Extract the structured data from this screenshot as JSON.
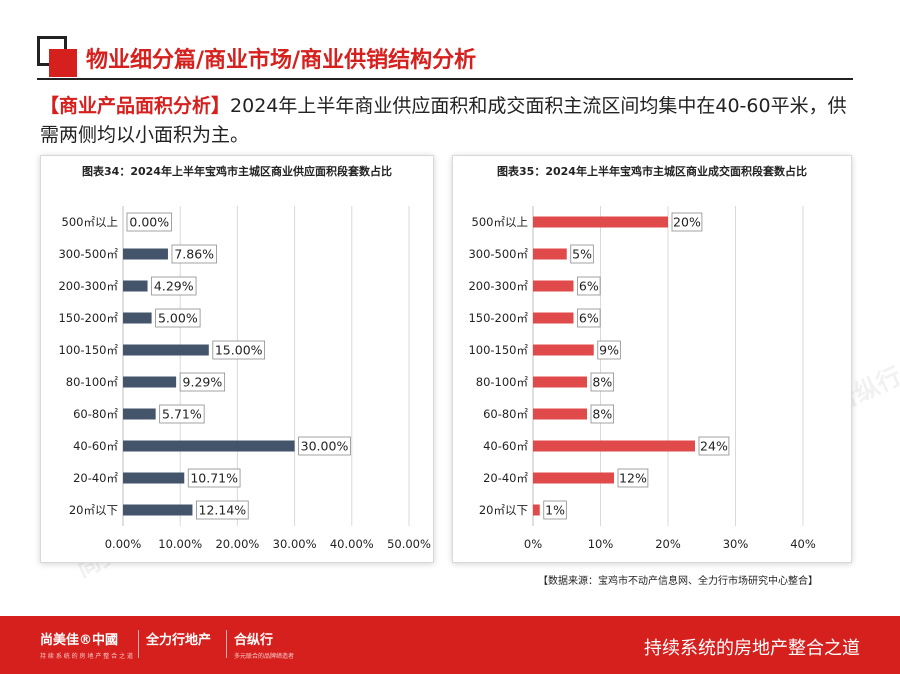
{
  "header": {
    "title": "物业细分篇/商业市场/商业供销结构分析"
  },
  "intro": {
    "tag": "【商业产品面积分析】",
    "text": "2024年上半年商业供应面积和成交面积主流区间均集中在40-60平米，供需两侧均以小面积为主。"
  },
  "chart_data": [
    {
      "type": "bar",
      "orientation": "horizontal",
      "title": "图表34：2024年上半年宝鸡市主城区商业供应面积段套数占比",
      "categories": [
        "500㎡以上",
        "300-500㎡",
        "200-300㎡",
        "150-200㎡",
        "100-150㎡",
        "80-100㎡",
        "60-80㎡",
        "40-60㎡",
        "20-40㎡",
        "20㎡以下"
      ],
      "values": [
        0.0,
        7.86,
        4.29,
        5.0,
        15.0,
        9.29,
        5.71,
        30.0,
        10.71,
        12.14
      ],
      "value_labels": [
        "0.00%",
        "7.86%",
        "4.29%",
        "5.00%",
        "15.00%",
        "9.29%",
        "5.71%",
        "30.00%",
        "10.71%",
        "12.14%"
      ],
      "xlim": [
        0,
        50
      ],
      "x_ticks": [
        "0.00%",
        "10.00%",
        "20.00%",
        "30.00%",
        "40.00%",
        "50.00%"
      ],
      "bar_color": "#44546a"
    },
    {
      "type": "bar",
      "orientation": "horizontal",
      "title": "图表35：2024年上半年宝鸡市主城区商业成交面积段套数占比",
      "categories": [
        "500㎡以上",
        "300-500㎡",
        "200-300㎡",
        "150-200㎡",
        "100-150㎡",
        "80-100㎡",
        "60-80㎡",
        "40-60㎡",
        "20-40㎡",
        "20㎡以下"
      ],
      "values": [
        20,
        5,
        6,
        6,
        9,
        8,
        8,
        24,
        12,
        1
      ],
      "value_labels": [
        "20%",
        "5%",
        "6%",
        "6%",
        "9%",
        "8%",
        "8%",
        "24%",
        "12%",
        "1%"
      ],
      "xlim": [
        0,
        40
      ],
      "x_ticks": [
        "0%",
        "10%",
        "20%",
        "30%",
        "40%"
      ],
      "bar_color": "#e04a4a"
    }
  ],
  "source": "【数据来源：宝鸡市不动产信息网、全力行市场研究中心整合】",
  "footer": {
    "brand1": "尚美佳®中國",
    "brand1_sub": "持 续 系 统 的 房 地 产 整 合 之 道",
    "brand2": "全力行地产",
    "brand3": "合纵行",
    "brand3_sub": "多元联合的品牌缔造者",
    "slogan": "持续系统的房地产整合之道"
  },
  "watermark": [
    "尚美佳®中國",
    "全力行地产",
    "合纵行"
  ]
}
